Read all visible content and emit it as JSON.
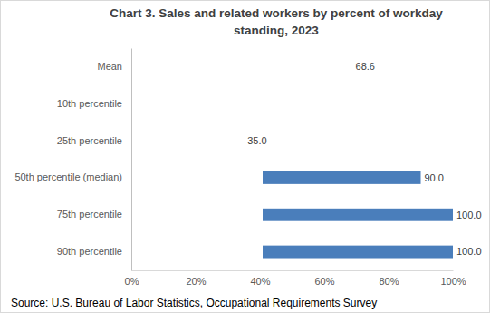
{
  "chart_data": {
    "type": "bar",
    "orientation": "horizontal",
    "title": "Chart 3. Sales and related workers by percent of workday standing, 2023",
    "categories": [
      "Mean",
      "10th percentile",
      "25th percentile",
      "50th percentile (median)",
      "75th percentile",
      "90th percentile"
    ],
    "values": [
      68.6,
      null,
      35.0,
      90.0,
      100.0,
      100.0
    ],
    "value_labels": [
      "68.6",
      null,
      "35.0",
      "90.0",
      "100.0",
      "100.0"
    ],
    "color": "#4a7ebb",
    "xlim": [
      0,
      100
    ],
    "xticks": [
      {
        "value": 0,
        "label": "0%"
      },
      {
        "value": 20,
        "label": "20%"
      },
      {
        "value": 40,
        "label": "40%"
      },
      {
        "value": 60,
        "label": "60%"
      },
      {
        "value": 80,
        "label": "80%"
      },
      {
        "value": 100,
        "label": "100%"
      }
    ],
    "grid": false,
    "data_labels": true,
    "source": "Source: U.S. Bureau of Labor Statistics, Occupational Requirements Survey"
  }
}
